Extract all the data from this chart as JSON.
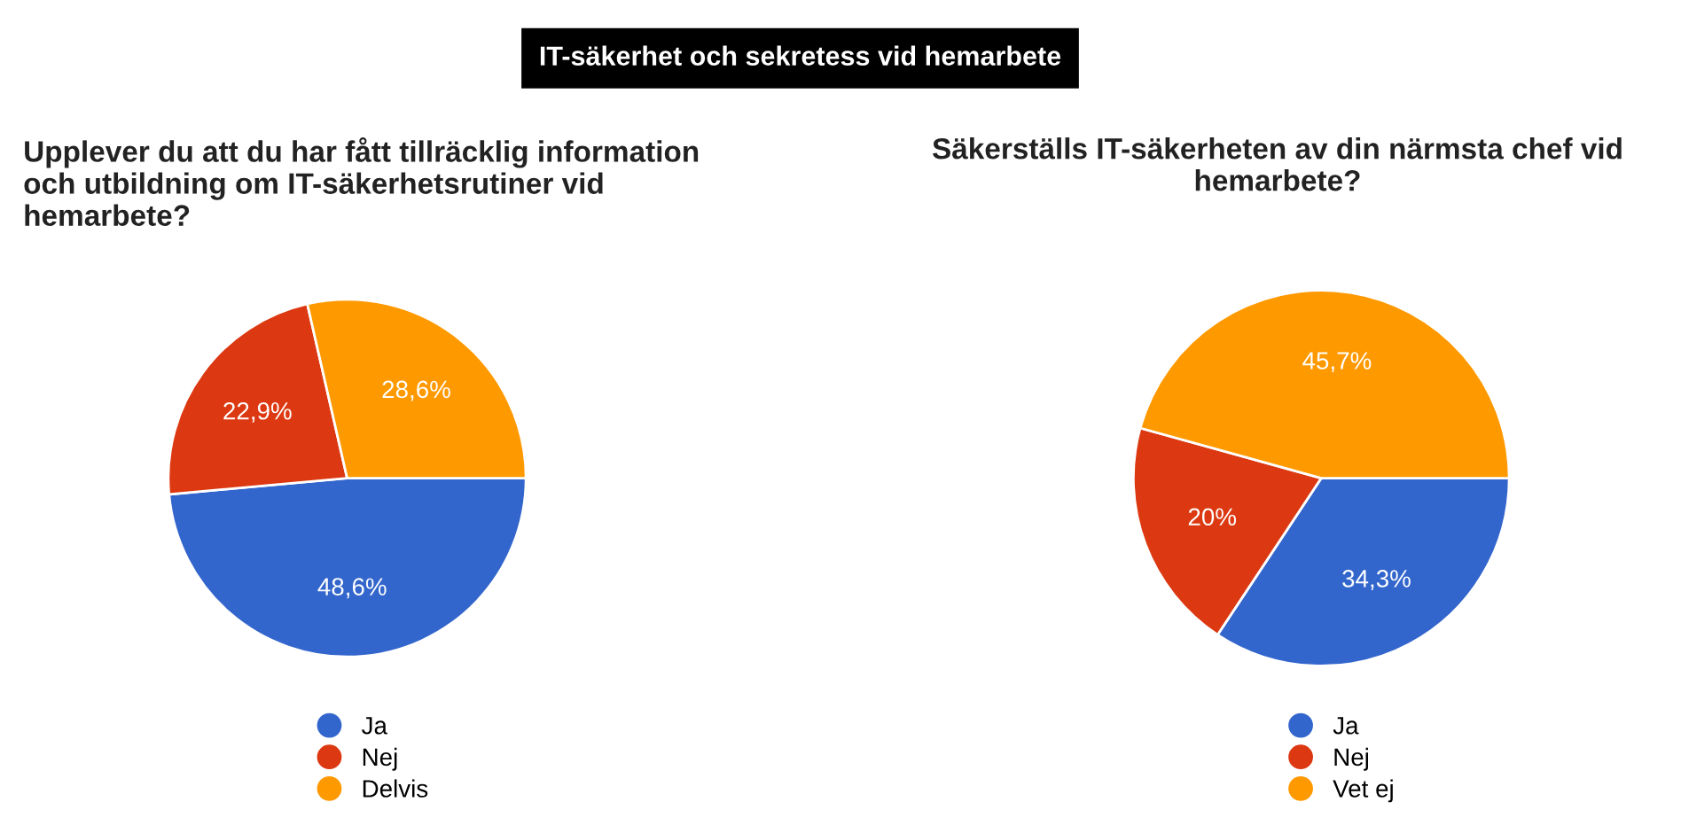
{
  "chart_data": [
    {
      "type": "pie",
      "title": "Upplever du att du har fått tillräcklig information och utbildning om IT-säkerhetsrutiner vid hemarbete?",
      "annotations": [
        "IT-säkerhet och sekretess vid hemarbete"
      ],
      "categories": [
        "Ja",
        "Nej",
        "Delvis"
      ],
      "values": [
        48.6,
        22.9,
        28.6
      ],
      "value_labels": [
        "48,6%",
        "22,9%",
        "28,6%"
      ],
      "colors": [
        "#3366cc",
        "#dc3912",
        "#ff9900"
      ],
      "legend": "bottom"
    },
    {
      "type": "pie",
      "title": "Säkerställs IT-säkerheten av din närmsta chef vid hemarbete?",
      "categories": [
        "Ja",
        "Nej",
        "Vet ej"
      ],
      "values": [
        34.3,
        20,
        45.7
      ],
      "value_labels": [
        "34,3%",
        "20%",
        "45,7%"
      ],
      "colors": [
        "#3366cc",
        "#dc3912",
        "#ff9900"
      ],
      "legend": "bottom"
    }
  ]
}
